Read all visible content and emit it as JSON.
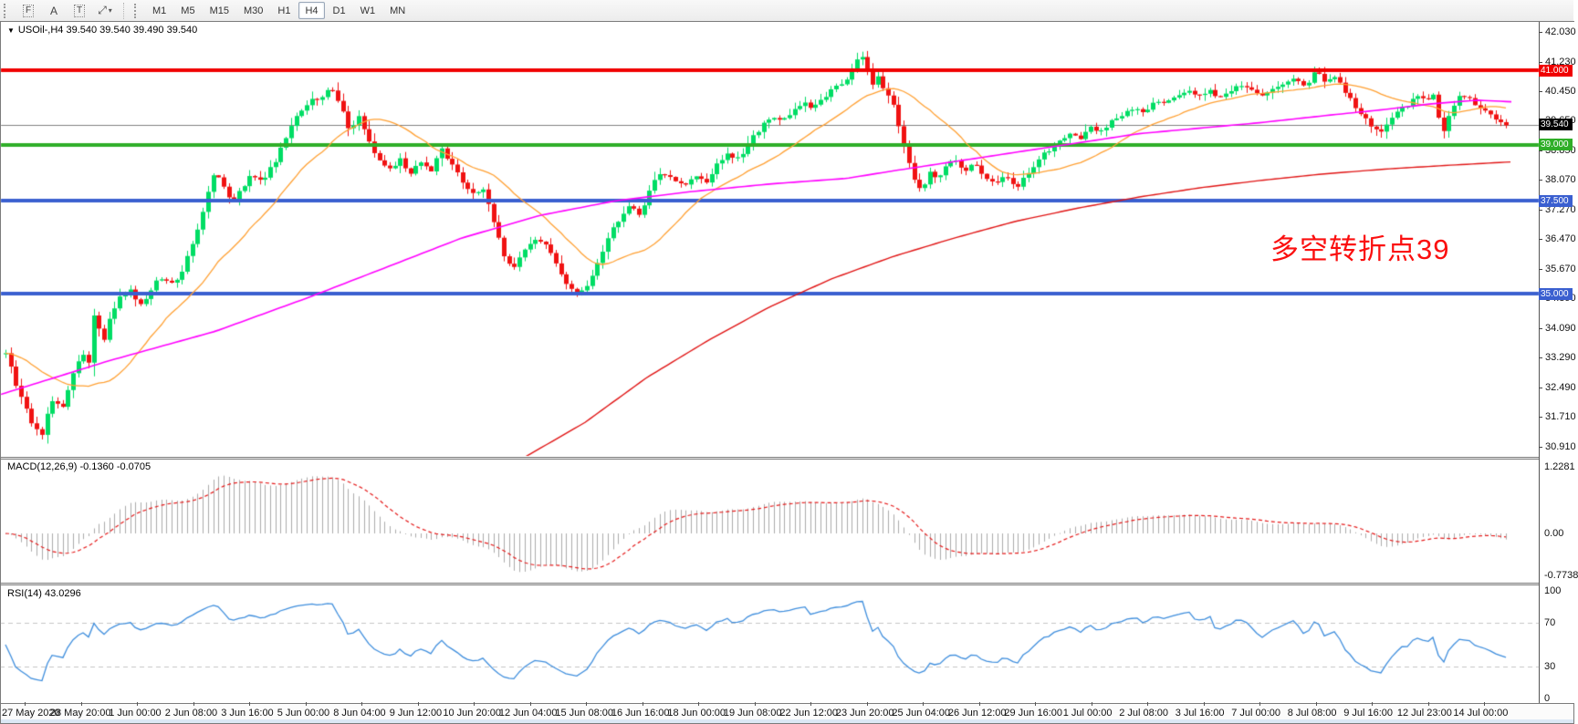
{
  "toolbar": {
    "tools": [
      {
        "name": "grid-f-tool",
        "glyph": "F",
        "boxed": true
      },
      {
        "name": "label-a-tool",
        "glyph": "A",
        "boxed": false
      },
      {
        "name": "text-t-tool",
        "glyph": "T",
        "boxed": true
      },
      {
        "name": "diagonal-arrows-tool",
        "glyph": "⤢",
        "boxed": false,
        "caret": "▾"
      }
    ],
    "timeframes": [
      "M1",
      "M5",
      "M15",
      "M30",
      "H1",
      "H4",
      "D1",
      "W1",
      "MN"
    ],
    "active_timeframe": "H4"
  },
  "chart": {
    "symbol_caret": "▼",
    "symbol_line": "USOil-,H4  39.540 39.540 39.490 39.540",
    "annotation": {
      "text": "多空转折点39",
      "color": "#fb0f0f"
    },
    "y_ticks": [
      "42.030",
      "41.230",
      "40.450",
      "39.650",
      "38.850",
      "38.070",
      "37.270",
      "36.470",
      "35.670",
      "34.890",
      "34.090",
      "33.290",
      "32.490",
      "31.710",
      "30.910"
    ],
    "price_line_labels": [
      {
        "text": "41.000",
        "bg": "#f00000",
        "price": 41.0
      },
      {
        "text": "39.540",
        "bg": "#000000",
        "price": 39.54
      },
      {
        "text": "39.000",
        "bg": "#2fae28",
        "price": 39.0
      },
      {
        "text": "37.500",
        "bg": "#3a5fd0",
        "price": 37.5
      },
      {
        "text": "35.000",
        "bg": "#3a5fd0",
        "price": 35.0
      }
    ],
    "time_labels": [
      "27 May 2020",
      "28 May 20:00",
      "1 Jun 00:00",
      "2 Jun 08:00",
      "3 Jun 16:00",
      "5 Jun 00:00",
      "8 Jun 04:00",
      "9 Jun 12:00",
      "10 Jun 20:00",
      "12 Jun 04:00",
      "15 Jun 08:00",
      "16 Jun 16:00",
      "18 Jun 00:00",
      "19 Jun 08:00",
      "22 Jun 12:00",
      "23 Jun 20:00",
      "25 Jun 04:00",
      "26 Jun 12:00",
      "29 Jun 16:00",
      "1 Jul 00:00",
      "2 Jul 08:00",
      "3 Jul 16:00",
      "7 Jul 00:00",
      "8 Jul 08:00",
      "9 Jul 16:00",
      "12 Jul 23:00",
      "14 Jul 00:00"
    ]
  },
  "chart_data": {
    "type": "candlestick",
    "symbol": "USOil",
    "timeframe": "H4",
    "title": "USOil-,H4",
    "ohlc_display": {
      "open": "39.540",
      "high": "39.540",
      "low": "39.490",
      "close": "39.540"
    },
    "y_axis": {
      "top": 42.03,
      "bottom": 30.66,
      "tick_step": 0.8
    },
    "candle_count": 290,
    "colors": {
      "up": "#00dd64",
      "down": "#f01212",
      "hline_red": "#f00000",
      "hline_green": "#2fae28",
      "hline_blue": "#3a5fd0",
      "current_price_line": "#808080",
      "ma_fast": "#ffa033",
      "ma_mid": "#ff00ff",
      "ma_long": "#e01414",
      "macd_bar": "#ababab",
      "macd_signal": "#e51c1c",
      "rsi_line": "#3f8edd",
      "rsi_level": "#c4c4c4"
    },
    "h_lines": [
      {
        "price": 41.0,
        "color": "#f00000",
        "width": 4
      },
      {
        "price": 39.0,
        "color": "#2fae28",
        "width": 4
      },
      {
        "price": 37.5,
        "color": "#3a5fd0",
        "width": 4
      },
      {
        "price": 35.0,
        "color": "#3a5fd0",
        "width": 4
      }
    ],
    "current_price": 39.54,
    "close_path": [
      [
        0.004,
        33.4
      ],
      [
        0.01,
        32.6
      ],
      [
        0.016,
        32.1
      ],
      [
        0.022,
        31.4
      ],
      [
        0.027,
        31.25
      ],
      [
        0.033,
        32.2
      ],
      [
        0.04,
        31.9
      ],
      [
        0.047,
        32.8
      ],
      [
        0.053,
        33.4
      ],
      [
        0.058,
        33.2
      ],
      [
        0.062,
        34.9
      ],
      [
        0.066,
        33.5
      ],
      [
        0.072,
        34.5
      ],
      [
        0.078,
        34.9
      ],
      [
        0.085,
        35.1
      ],
      [
        0.09,
        34.6
      ],
      [
        0.096,
        35.0
      ],
      [
        0.101,
        35.3
      ],
      [
        0.106,
        35.45
      ],
      [
        0.113,
        35.2
      ],
      [
        0.12,
        35.8
      ],
      [
        0.127,
        36.6
      ],
      [
        0.133,
        37.4
      ],
      [
        0.139,
        38.3
      ],
      [
        0.145,
        37.9
      ],
      [
        0.151,
        37.45
      ],
      [
        0.158,
        37.9
      ],
      [
        0.163,
        38.2
      ],
      [
        0.17,
        38.0
      ],
      [
        0.178,
        38.5
      ],
      [
        0.186,
        39.2
      ],
      [
        0.194,
        39.9
      ],
      [
        0.201,
        40.15
      ],
      [
        0.208,
        40.3
      ],
      [
        0.215,
        40.5
      ],
      [
        0.221,
        40.15
      ],
      [
        0.227,
        39.4
      ],
      [
        0.233,
        39.75
      ],
      [
        0.239,
        39.1
      ],
      [
        0.246,
        38.6
      ],
      [
        0.253,
        38.35
      ],
      [
        0.26,
        38.6
      ],
      [
        0.267,
        38.2
      ],
      [
        0.273,
        38.55
      ],
      [
        0.28,
        38.3
      ],
      [
        0.287,
        38.95
      ],
      [
        0.294,
        38.4
      ],
      [
        0.301,
        38.0
      ],
      [
        0.308,
        37.65
      ],
      [
        0.314,
        37.85
      ],
      [
        0.321,
        36.9
      ],
      [
        0.327,
        36.1
      ],
      [
        0.334,
        35.65
      ],
      [
        0.341,
        36.25
      ],
      [
        0.348,
        36.5
      ],
      [
        0.355,
        36.25
      ],
      [
        0.362,
        35.75
      ],
      [
        0.368,
        35.3
      ],
      [
        0.375,
        35.0
      ],
      [
        0.382,
        35.25
      ],
      [
        0.389,
        35.9
      ],
      [
        0.395,
        36.5
      ],
      [
        0.402,
        37.0
      ],
      [
        0.409,
        37.4
      ],
      [
        0.416,
        37.15
      ],
      [
        0.423,
        37.9
      ],
      [
        0.43,
        38.3
      ],
      [
        0.437,
        38.05
      ],
      [
        0.444,
        37.9
      ],
      [
        0.451,
        38.2
      ],
      [
        0.459,
        38.0
      ],
      [
        0.466,
        38.5
      ],
      [
        0.473,
        38.8
      ],
      [
        0.48,
        38.6
      ],
      [
        0.487,
        39.1
      ],
      [
        0.494,
        39.45
      ],
      [
        0.501,
        39.8
      ],
      [
        0.508,
        39.6
      ],
      [
        0.515,
        39.95
      ],
      [
        0.522,
        40.1
      ],
      [
        0.529,
        40.0
      ],
      [
        0.536,
        40.3
      ],
      [
        0.543,
        40.55
      ],
      [
        0.55,
        40.8
      ],
      [
        0.555,
        41.15
      ],
      [
        0.559,
        41.45
      ],
      [
        0.563,
        41.05
      ],
      [
        0.567,
        40.6
      ],
      [
        0.571,
        40.85
      ],
      [
        0.575,
        40.45
      ],
      [
        0.581,
        40.0
      ],
      [
        0.587,
        39.0
      ],
      [
        0.593,
        38.1
      ],
      [
        0.599,
        37.75
      ],
      [
        0.605,
        38.3
      ],
      [
        0.609,
        38.05
      ],
      [
        0.615,
        38.45
      ],
      [
        0.621,
        38.6
      ],
      [
        0.627,
        38.3
      ],
      [
        0.633,
        38.55
      ],
      [
        0.639,
        38.2
      ],
      [
        0.646,
        37.9
      ],
      [
        0.653,
        38.15
      ],
      [
        0.66,
        37.85
      ],
      [
        0.667,
        38.2
      ],
      [
        0.674,
        38.55
      ],
      [
        0.681,
        38.85
      ],
      [
        0.688,
        39.15
      ],
      [
        0.695,
        39.3
      ],
      [
        0.702,
        39.1
      ],
      [
        0.709,
        39.5
      ],
      [
        0.716,
        39.35
      ],
      [
        0.723,
        39.65
      ],
      [
        0.73,
        39.8
      ],
      [
        0.737,
        40.0
      ],
      [
        0.744,
        39.9
      ],
      [
        0.751,
        40.2
      ],
      [
        0.758,
        40.1
      ],
      [
        0.765,
        40.35
      ],
      [
        0.772,
        40.5
      ],
      [
        0.779,
        40.3
      ],
      [
        0.786,
        40.45
      ],
      [
        0.793,
        40.25
      ],
      [
        0.8,
        40.45
      ],
      [
        0.807,
        40.6
      ],
      [
        0.814,
        40.4
      ],
      [
        0.821,
        40.3
      ],
      [
        0.828,
        40.55
      ],
      [
        0.834,
        40.65
      ],
      [
        0.841,
        40.8
      ],
      [
        0.848,
        40.6
      ],
      [
        0.855,
        40.95
      ],
      [
        0.861,
        40.7
      ],
      [
        0.867,
        40.8
      ],
      [
        0.873,
        40.5
      ],
      [
        0.879,
        40.15
      ],
      [
        0.885,
        39.8
      ],
      [
        0.891,
        39.5
      ],
      [
        0.897,
        39.3
      ],
      [
        0.903,
        39.65
      ],
      [
        0.909,
        39.9
      ],
      [
        0.915,
        40.1
      ],
      [
        0.921,
        40.3
      ],
      [
        0.927,
        40.2
      ],
      [
        0.932,
        40.3
      ],
      [
        0.937,
        39.2
      ],
      [
        0.943,
        39.9
      ],
      [
        0.949,
        40.35
      ],
      [
        0.955,
        40.2
      ],
      [
        0.961,
        40.0
      ],
      [
        0.967,
        39.85
      ],
      [
        0.972,
        39.7
      ],
      [
        0.976,
        39.6
      ],
      [
        0.979,
        39.54
      ]
    ],
    "ma_fast_period": 20,
    "ma_mid_keyframes": [
      [
        0,
        32.3
      ],
      [
        0.07,
        33.2
      ],
      [
        0.14,
        34.0
      ],
      [
        0.2,
        34.9
      ],
      [
        0.25,
        35.7
      ],
      [
        0.3,
        36.5
      ],
      [
        0.35,
        37.1
      ],
      [
        0.4,
        37.5
      ],
      [
        0.45,
        37.75
      ],
      [
        0.5,
        37.95
      ],
      [
        0.55,
        38.1
      ],
      [
        0.58,
        38.3
      ],
      [
        0.62,
        38.55
      ],
      [
        0.66,
        38.8
      ],
      [
        0.7,
        39.05
      ],
      [
        0.74,
        39.3
      ],
      [
        0.78,
        39.45
      ],
      [
        0.82,
        39.6
      ],
      [
        0.86,
        39.78
      ],
      [
        0.9,
        39.95
      ],
      [
        0.93,
        40.1
      ],
      [
        0.96,
        40.2
      ],
      [
        0.985,
        40.15
      ]
    ],
    "ma_long_keyframes": [
      [
        0.34,
        30.6
      ],
      [
        0.38,
        31.55
      ],
      [
        0.42,
        32.75
      ],
      [
        0.46,
        33.75
      ],
      [
        0.5,
        34.65
      ],
      [
        0.54,
        35.4
      ],
      [
        0.58,
        36.0
      ],
      [
        0.62,
        36.5
      ],
      [
        0.66,
        36.95
      ],
      [
        0.7,
        37.3
      ],
      [
        0.74,
        37.6
      ],
      [
        0.78,
        37.85
      ],
      [
        0.82,
        38.05
      ],
      [
        0.86,
        38.22
      ],
      [
        0.9,
        38.35
      ],
      [
        0.94,
        38.45
      ],
      [
        0.985,
        38.55
      ]
    ],
    "indicators": {
      "macd": {
        "label": "MACD(12,26,9) -0.1360 -0.0705",
        "params": [
          12,
          26,
          9
        ],
        "values_display": [
          "-0.1360",
          "-0.0705"
        ],
        "axis_ticks": [
          1.2281,
          0.0,
          -0.7738
        ]
      },
      "rsi": {
        "label": "RSI(14) 43.0296",
        "period": 14,
        "value_display": "43.0296",
        "levels": [
          70,
          30
        ],
        "axis_ticks": [
          100,
          70,
          30,
          0
        ]
      }
    }
  }
}
